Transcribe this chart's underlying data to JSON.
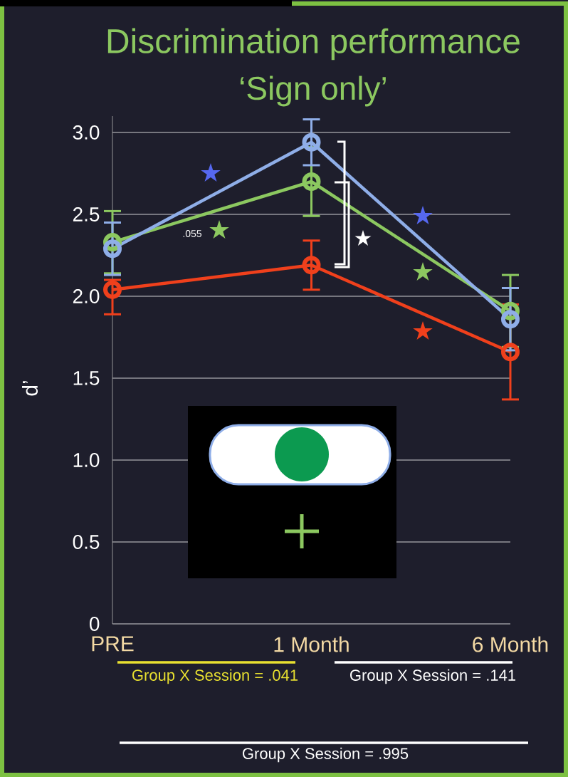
{
  "chart_data": {
    "type": "line",
    "title": "Discrimination performance",
    "subtitle": "‘Sign only’",
    "ylabel": "d’",
    "categories": [
      "PRE",
      "1 Month",
      "6 Month"
    ],
    "series": [
      {
        "color": "#f0401c",
        "values": [
          2.04,
          2.19,
          1.66
        ],
        "errors": [
          [
            1.89,
            2.1
          ],
          0.15,
          0.29
        ]
      },
      {
        "color": "#8cc860",
        "values": [
          2.33,
          2.7,
          1.91
        ],
        "errors": [
          0.19,
          0.21,
          0.22
        ]
      },
      {
        "color": "#8faee8",
        "values": [
          2.29,
          2.94,
          1.86
        ],
        "errors": [
          0.16,
          0.14,
          0.19
        ]
      }
    ],
    "ylim": [
      0,
      3.1
    ],
    "yticks": [
      0,
      0.5,
      {
        "value": 1,
        "label": "1.0"
      },
      1.5,
      {
        "value": 2,
        "label": "2.0"
      },
      2.5,
      {
        "value": 3,
        "label": "3.0"
      }
    ],
    "grid": "y",
    "marker": "circle",
    "line_style": "solid",
    "annotations": [
      ".055",
      "★",
      "★",
      "★",
      "★",
      "★",
      "★",
      "Group X Session = .041",
      "Group X Session = .141",
      "Group X Session = .995"
    ]
  }
}
